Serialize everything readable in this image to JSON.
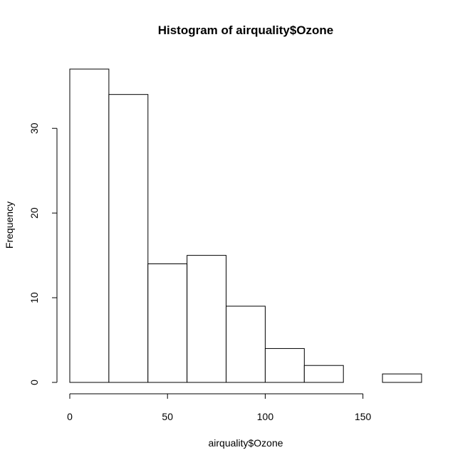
{
  "chart_data": {
    "type": "bar",
    "title": "Histogram of airquality$Ozone",
    "xlabel": "airquality$Ozone",
    "ylabel": "Frequency",
    "bins": [
      {
        "start": 0,
        "end": 20,
        "count": 37
      },
      {
        "start": 20,
        "end": 40,
        "count": 34
      },
      {
        "start": 40,
        "end": 60,
        "count": 14
      },
      {
        "start": 60,
        "end": 80,
        "count": 15
      },
      {
        "start": 80,
        "end": 100,
        "count": 9
      },
      {
        "start": 100,
        "end": 120,
        "count": 4
      },
      {
        "start": 120,
        "end": 140,
        "count": 2
      },
      {
        "start": 140,
        "end": 160,
        "count": 0
      },
      {
        "start": 160,
        "end": 180,
        "count": 1
      }
    ],
    "xlim": [
      0,
      180
    ],
    "ylim": [
      0,
      37
    ],
    "x_ticks": [
      0,
      50,
      100,
      150
    ],
    "x_tick_labels": [
      "0",
      "50",
      "100",
      "150"
    ],
    "y_ticks": [
      0,
      10,
      20,
      30
    ],
    "y_tick_labels": [
      "0",
      "10",
      "20",
      "30"
    ],
    "grid": false,
    "bar_fill": "#ffffff",
    "bar_stroke": "#000000"
  }
}
